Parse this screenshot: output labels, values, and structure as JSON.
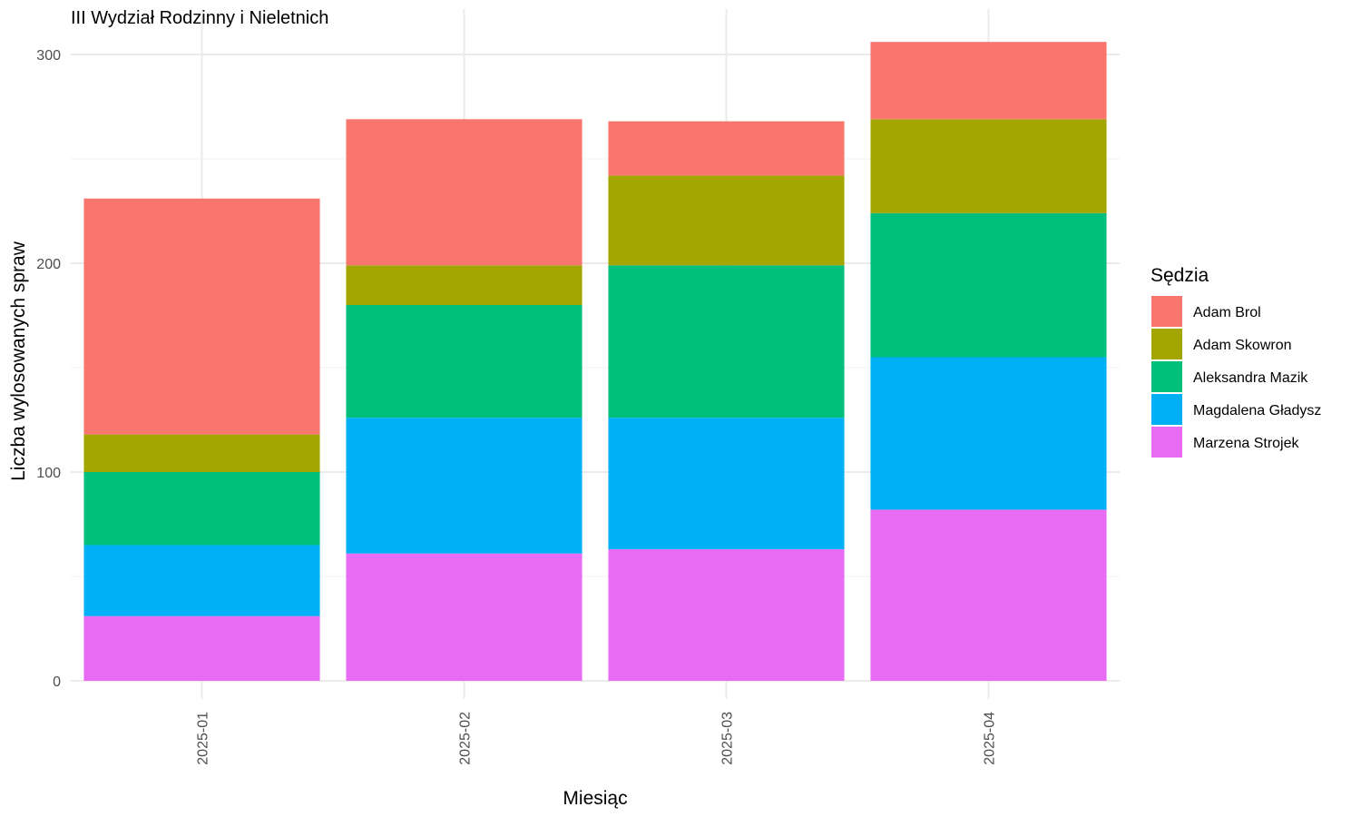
{
  "chart_data": {
    "type": "bar",
    "stacked": true,
    "title": "III Wydział Rodzinny i Nieletnich",
    "xlabel": "Miesiąc",
    "ylabel": "Liczba wylosowanych spraw",
    "ylim": [
      0,
      320
    ],
    "yticks": [
      0,
      100,
      200,
      300
    ],
    "grid": true,
    "legend_title": "Sędzia",
    "legend_position": "right",
    "categories": [
      "2025-01",
      "2025-02",
      "2025-03",
      "2025-04"
    ],
    "series": [
      {
        "name": "Marzena Strojek",
        "color": "#E76BF3",
        "values": [
          31,
          61,
          63,
          82
        ]
      },
      {
        "name": "Magdalena Gładysz",
        "color": "#00B0F6",
        "values": [
          34,
          65,
          63,
          73
        ]
      },
      {
        "name": "Aleksandra Mazik",
        "color": "#00BF7D",
        "values": [
          35,
          54,
          73,
          69
        ]
      },
      {
        "name": "Adam Skowron",
        "color": "#A3A500",
        "values": [
          18,
          19,
          43,
          45
        ]
      },
      {
        "name": "Adam Brol",
        "color": "#F8766D",
        "values": [
          113,
          70,
          26,
          37
        ]
      }
    ],
    "legend_order": [
      "Adam Brol",
      "Adam Skowron",
      "Aleksandra Mazik",
      "Magdalena Gładysz",
      "Marzena Strojek"
    ]
  }
}
